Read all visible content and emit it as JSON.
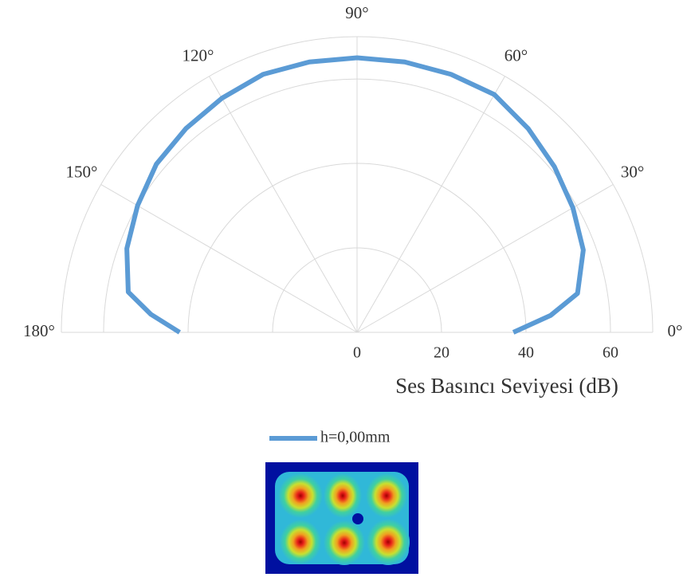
{
  "chart_data": {
    "type": "polar",
    "rlabel": "Ses Basıncı Seviyesi (dB)",
    "theta": [
      0,
      5,
      10,
      20,
      30,
      40,
      50,
      60,
      70,
      80,
      90,
      100,
      110,
      120,
      130,
      140,
      150,
      160,
      170,
      175,
      180
    ],
    "series": [
      {
        "name": "h=0,00mm",
        "color": "#5b9bd5",
        "values": [
          37,
          46,
          53,
          57,
          59,
          61,
          63,
          65,
          65,
          65,
          65,
          65,
          65,
          64,
          63,
          62,
          60,
          58,
          55,
          49,
          42
        ]
      }
    ],
    "rlim": [
      0,
      70
    ],
    "rticks": [
      0,
      20,
      40,
      60
    ],
    "thetalim": [
      0,
      180
    ],
    "thetaticks": [
      {
        "value": 0,
        "label": "0°"
      },
      {
        "value": 30,
        "label": "30°"
      },
      {
        "value": 60,
        "label": "60°"
      },
      {
        "value": 90,
        "label": "90°"
      },
      {
        "value": 120,
        "label": "120°"
      },
      {
        "value": 150,
        "label": "150°"
      },
      {
        "value": 180,
        "label": "180°"
      }
    ],
    "grid": true
  }
}
